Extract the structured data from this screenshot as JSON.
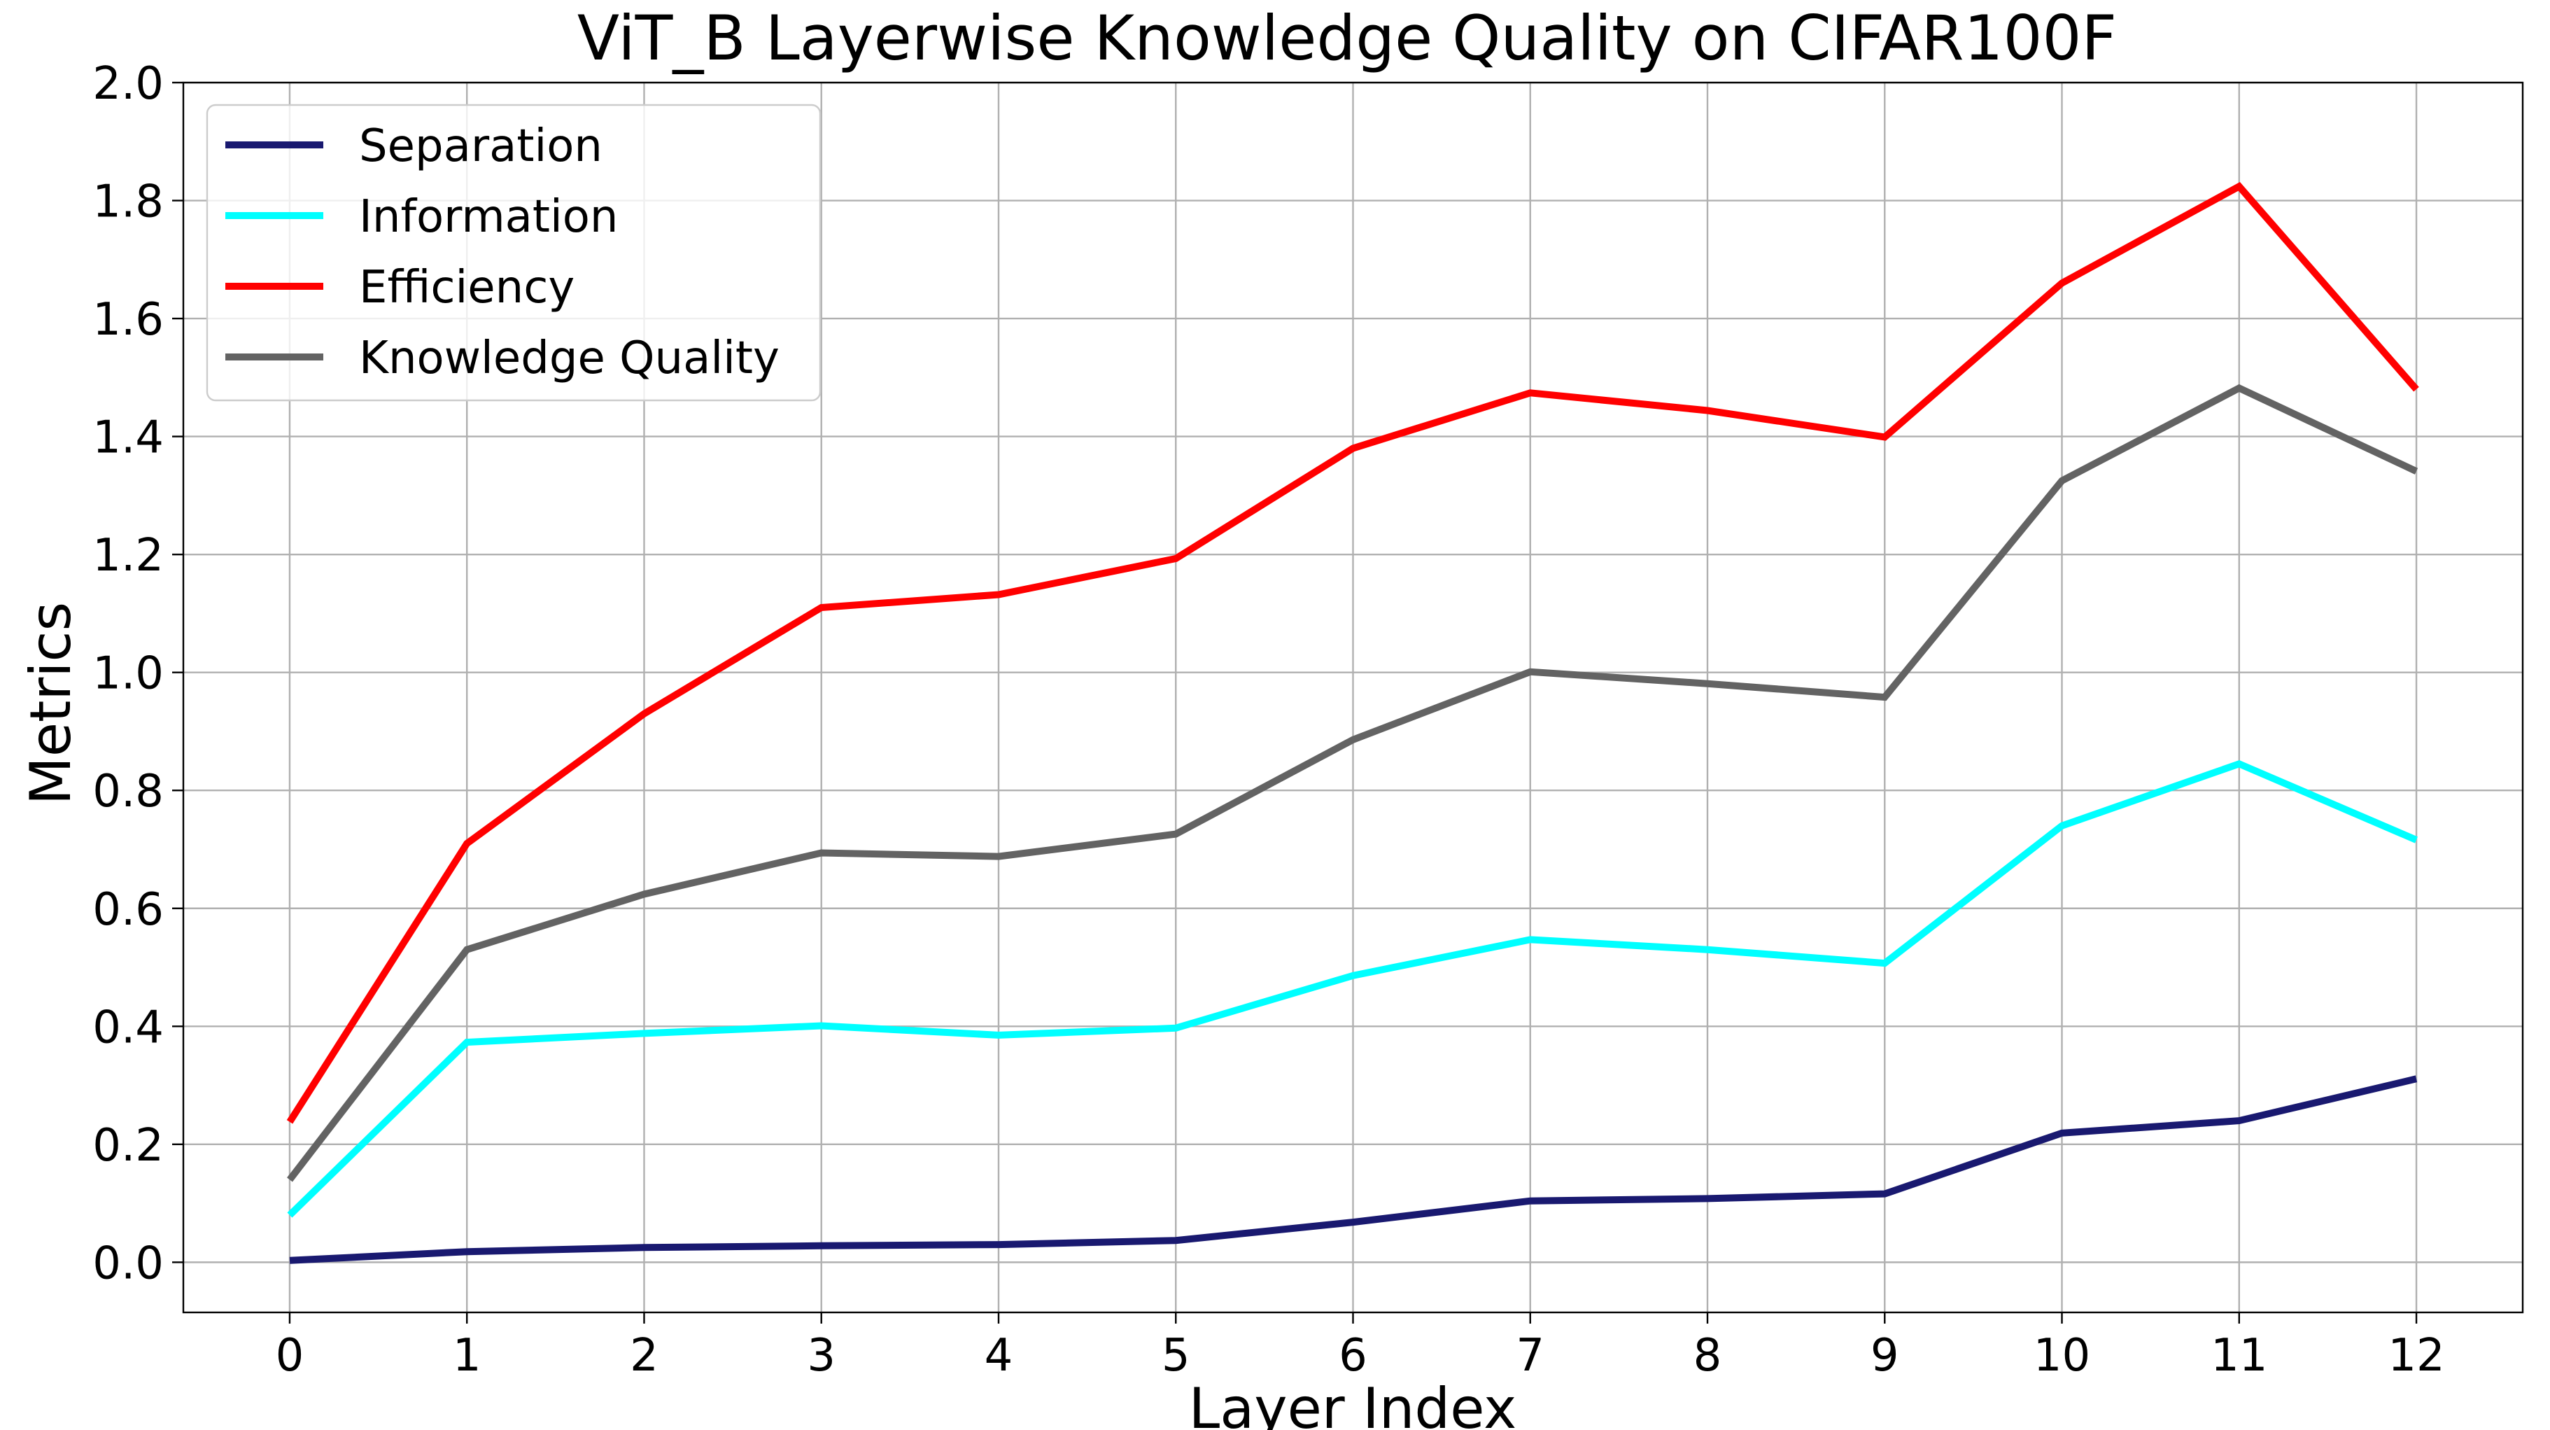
{
  "chart_data": {
    "type": "line",
    "title": "ViT_B Layerwise Knowledge Quality on CIFAR100F",
    "xlabel": "Layer Index",
    "ylabel": "Metrics",
    "x": [
      0,
      1,
      2,
      3,
      4,
      5,
      6,
      7,
      8,
      9,
      10,
      11,
      12
    ],
    "xticks": [
      "0",
      "1",
      "2",
      "3",
      "4",
      "5",
      "6",
      "7",
      "8",
      "9",
      "10",
      "11",
      "12"
    ],
    "yticks": [
      "0.0",
      "0.2",
      "0.4",
      "0.6",
      "0.8",
      "1.0",
      "1.2",
      "1.4",
      "1.6",
      "1.8",
      "2.0"
    ],
    "xlim": [
      -0.6,
      12.6
    ],
    "ylim": [
      -0.085,
      2.0
    ],
    "grid": true,
    "legend_position": "top-left",
    "series": [
      {
        "name": "Separation",
        "color": "#191970",
        "values": [
          0.003,
          0.018,
          0.025,
          0.028,
          0.03,
          0.037,
          0.068,
          0.104,
          0.108,
          0.116,
          0.219,
          0.24,
          0.311
        ]
      },
      {
        "name": "Information",
        "color": "#00ffff",
        "values": [
          0.08,
          0.373,
          0.388,
          0.401,
          0.385,
          0.397,
          0.486,
          0.547,
          0.53,
          0.507,
          0.74,
          0.845,
          0.716
        ]
      },
      {
        "name": "Efficiency",
        "color": "#ff0000",
        "values": [
          0.238,
          0.71,
          0.93,
          1.11,
          1.132,
          1.193,
          1.38,
          1.474,
          1.444,
          1.399,
          1.66,
          1.824,
          1.48
        ]
      },
      {
        "name": "Knowledge Quality",
        "color": "#636363",
        "values": [
          0.14,
          0.53,
          0.624,
          0.694,
          0.688,
          0.726,
          0.886,
          1.001,
          0.981,
          0.958,
          1.325,
          1.482,
          1.341
        ]
      }
    ]
  }
}
